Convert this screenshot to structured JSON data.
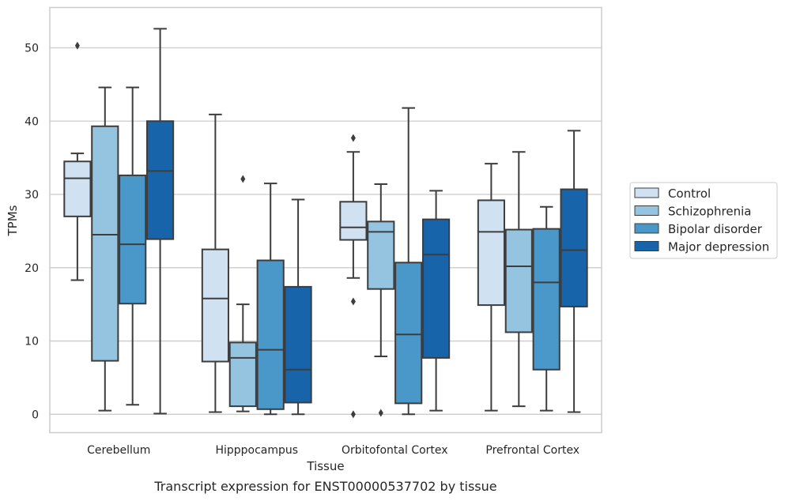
{
  "chart_data": {
    "type": "box",
    "title": "",
    "caption": "Transcript expression for ENST00000537702 by tissue",
    "xlabel": "Tissue",
    "ylabel": "TPMs",
    "ylim": [
      -2.5,
      55.5
    ],
    "yticks": [
      0,
      10,
      20,
      30,
      40,
      50
    ],
    "grid": "horizontal",
    "legend_position": "right",
    "categories": [
      "Cerebellum",
      "Hipppocampus",
      "Orbitofontal Cortex",
      "Prefrontal Cortex"
    ],
    "series": [
      {
        "name": "Control",
        "color": "#d0e1f2",
        "boxes": [
          {
            "whislo": 18.3,
            "q1": 27.0,
            "med": 32.2,
            "q3": 34.5,
            "whishi": 35.6,
            "fliers": [
              50.3
            ]
          },
          {
            "whislo": 0.3,
            "q1": 7.2,
            "med": 15.8,
            "q3": 22.5,
            "whishi": 40.9,
            "fliers": []
          },
          {
            "whislo": 18.6,
            "q1": 23.8,
            "med": 25.5,
            "q3": 29.0,
            "whishi": 35.8,
            "fliers": [
              37.7,
              15.4,
              0.0
            ]
          },
          {
            "whislo": 0.5,
            "q1": 14.9,
            "med": 24.9,
            "q3": 29.2,
            "whishi": 34.2,
            "fliers": []
          }
        ]
      },
      {
        "name": "Schizophrenia",
        "color": "#94c4df",
        "boxes": [
          {
            "whislo": 0.5,
            "q1": 7.3,
            "med": 24.5,
            "q3": 39.3,
            "whishi": 44.6,
            "fliers": []
          },
          {
            "whislo": 0.4,
            "q1": 1.1,
            "med": 7.7,
            "q3": 9.8,
            "whishi": 15.0,
            "fliers": [
              32.1
            ]
          },
          {
            "whislo": 7.9,
            "q1": 17.1,
            "med": 24.9,
            "q3": 26.3,
            "whishi": 31.4,
            "fliers": [
              0.2
            ]
          },
          {
            "whislo": 1.1,
            "q1": 11.2,
            "med": 20.2,
            "q3": 25.2,
            "whishi": 35.8,
            "fliers": []
          }
        ]
      },
      {
        "name": "Bipolar disorder",
        "color": "#4a98c9",
        "boxes": [
          {
            "whislo": 1.3,
            "q1": 15.1,
            "med": 23.2,
            "q3": 32.6,
            "whishi": 44.6,
            "fliers": []
          },
          {
            "whislo": 0.0,
            "q1": 0.7,
            "med": 8.8,
            "q3": 21.0,
            "whishi": 31.5,
            "fliers": []
          },
          {
            "whislo": 0.0,
            "q1": 1.5,
            "med": 10.9,
            "q3": 20.7,
            "whishi": 41.8,
            "fliers": []
          },
          {
            "whislo": 0.5,
            "q1": 6.1,
            "med": 18.0,
            "q3": 25.3,
            "whishi": 28.3,
            "fliers": []
          }
        ]
      },
      {
        "name": "Major depression",
        "color": "#1764ab",
        "boxes": [
          {
            "whislo": 0.1,
            "q1": 23.9,
            "med": 33.2,
            "q3": 40.0,
            "whishi": 52.6,
            "fliers": []
          },
          {
            "whislo": 0.0,
            "q1": 1.6,
            "med": 6.1,
            "q3": 17.4,
            "whishi": 29.3,
            "fliers": []
          },
          {
            "whislo": 0.5,
            "q1": 7.7,
            "med": 21.8,
            "q3": 26.6,
            "whishi": 30.5,
            "fliers": []
          },
          {
            "whislo": 0.3,
            "q1": 14.7,
            "med": 22.4,
            "q3": 30.7,
            "whishi": 38.7,
            "fliers": []
          }
        ]
      }
    ]
  }
}
